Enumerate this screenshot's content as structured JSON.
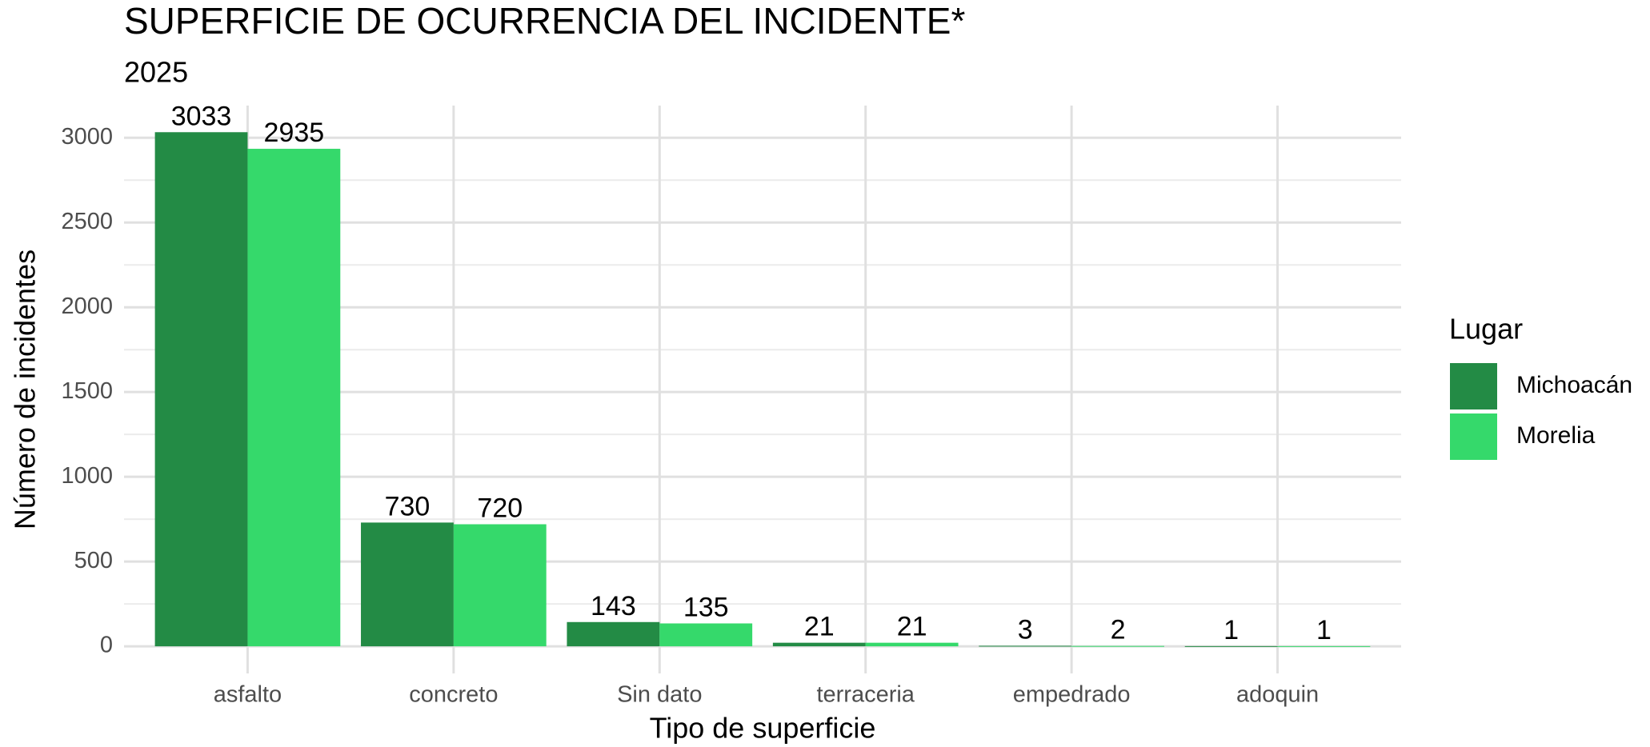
{
  "chart_data": {
    "type": "bar",
    "title": "SUPERFICIE DE OCURRENCIA DEL INCIDENTE*",
    "subtitle": "2025",
    "x_label": "Tipo de superficie",
    "y_label": "Número de incidentes",
    "legend_title": "Lugar",
    "legend_position": "right",
    "categories": [
      "asfalto",
      "concreto",
      "Sin dato",
      "terraceria",
      "empedrado",
      "adoquin"
    ],
    "series": [
      {
        "name": "Michoacán",
        "color": "#238b45",
        "values": [
          3033,
          730,
          143,
          21,
          3,
          1
        ]
      },
      {
        "name": "Morelia",
        "color": "#35d96b",
        "values": [
          2935,
          720,
          135,
          21,
          2,
          1
        ]
      }
    ],
    "ylim": [
      -160,
      3190
    ],
    "yticks": [
      0,
      500,
      1000,
      1500,
      2000,
      2500,
      3000
    ],
    "grid": true
  }
}
